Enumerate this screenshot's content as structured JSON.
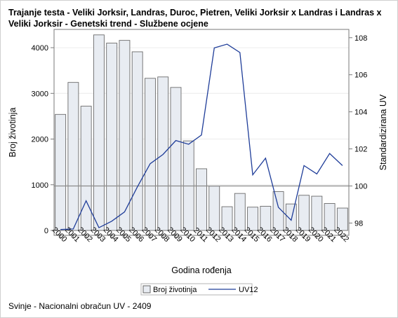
{
  "chart_data": {
    "type": "bar",
    "title": "Trajanje testa - Veliki Jorksir, Landras, Duroc, Pietren, Veliki Jorksir x Landras i Landras x Veliki Jorksir - Genetski trend - Službene ocjene",
    "footnote": "Svinje - Nacionalni obračun UV - 2409",
    "xlabel": "Godina rođenja",
    "ylabel_left": "Broj životinja",
    "ylabel_right": "Standardizirana UV",
    "categories": [
      "2000",
      "2001",
      "2002",
      "2003",
      "2004",
      "2005",
      "2006",
      "2007",
      "2008",
      "2009",
      "2010",
      "2011",
      "2012",
      "2013",
      "2014",
      "2015",
      "2016",
      "2017",
      "2018",
      "2019",
      "2020",
      "2021",
      "2022"
    ],
    "series": [
      {
        "name": "Broj životinja",
        "type": "bar",
        "axis": "left",
        "color": "#e8ecf2",
        "values": [
          2540,
          3240,
          2720,
          4280,
          4100,
          4160,
          3910,
          3330,
          3360,
          3130,
          1960,
          1350,
          970,
          520,
          810,
          510,
          530,
          850,
          580,
          770,
          750,
          590,
          490
        ]
      },
      {
        "name": "UV12",
        "type": "line",
        "axis": "right",
        "color": "#1f3d99",
        "values": [
          97.65,
          97.68,
          99.2,
          97.75,
          98.1,
          98.6,
          99.95,
          101.2,
          101.7,
          102.45,
          102.25,
          102.75,
          107.45,
          107.65,
          107.2,
          100.6,
          101.5,
          98.85,
          98.15,
          101.1,
          100.65,
          101.75,
          101.1
        ]
      }
    ],
    "ylim_left": [
      0,
      4300
    ],
    "yticks_left": [
      0,
      1000,
      2000,
      3000,
      4000
    ],
    "ylim_right": [
      97.6,
      108.2
    ],
    "yticks_right": [
      98,
      100,
      102,
      104,
      106,
      108
    ],
    "reference_line_right": 100,
    "grid": true,
    "legend_position": "bottom"
  }
}
